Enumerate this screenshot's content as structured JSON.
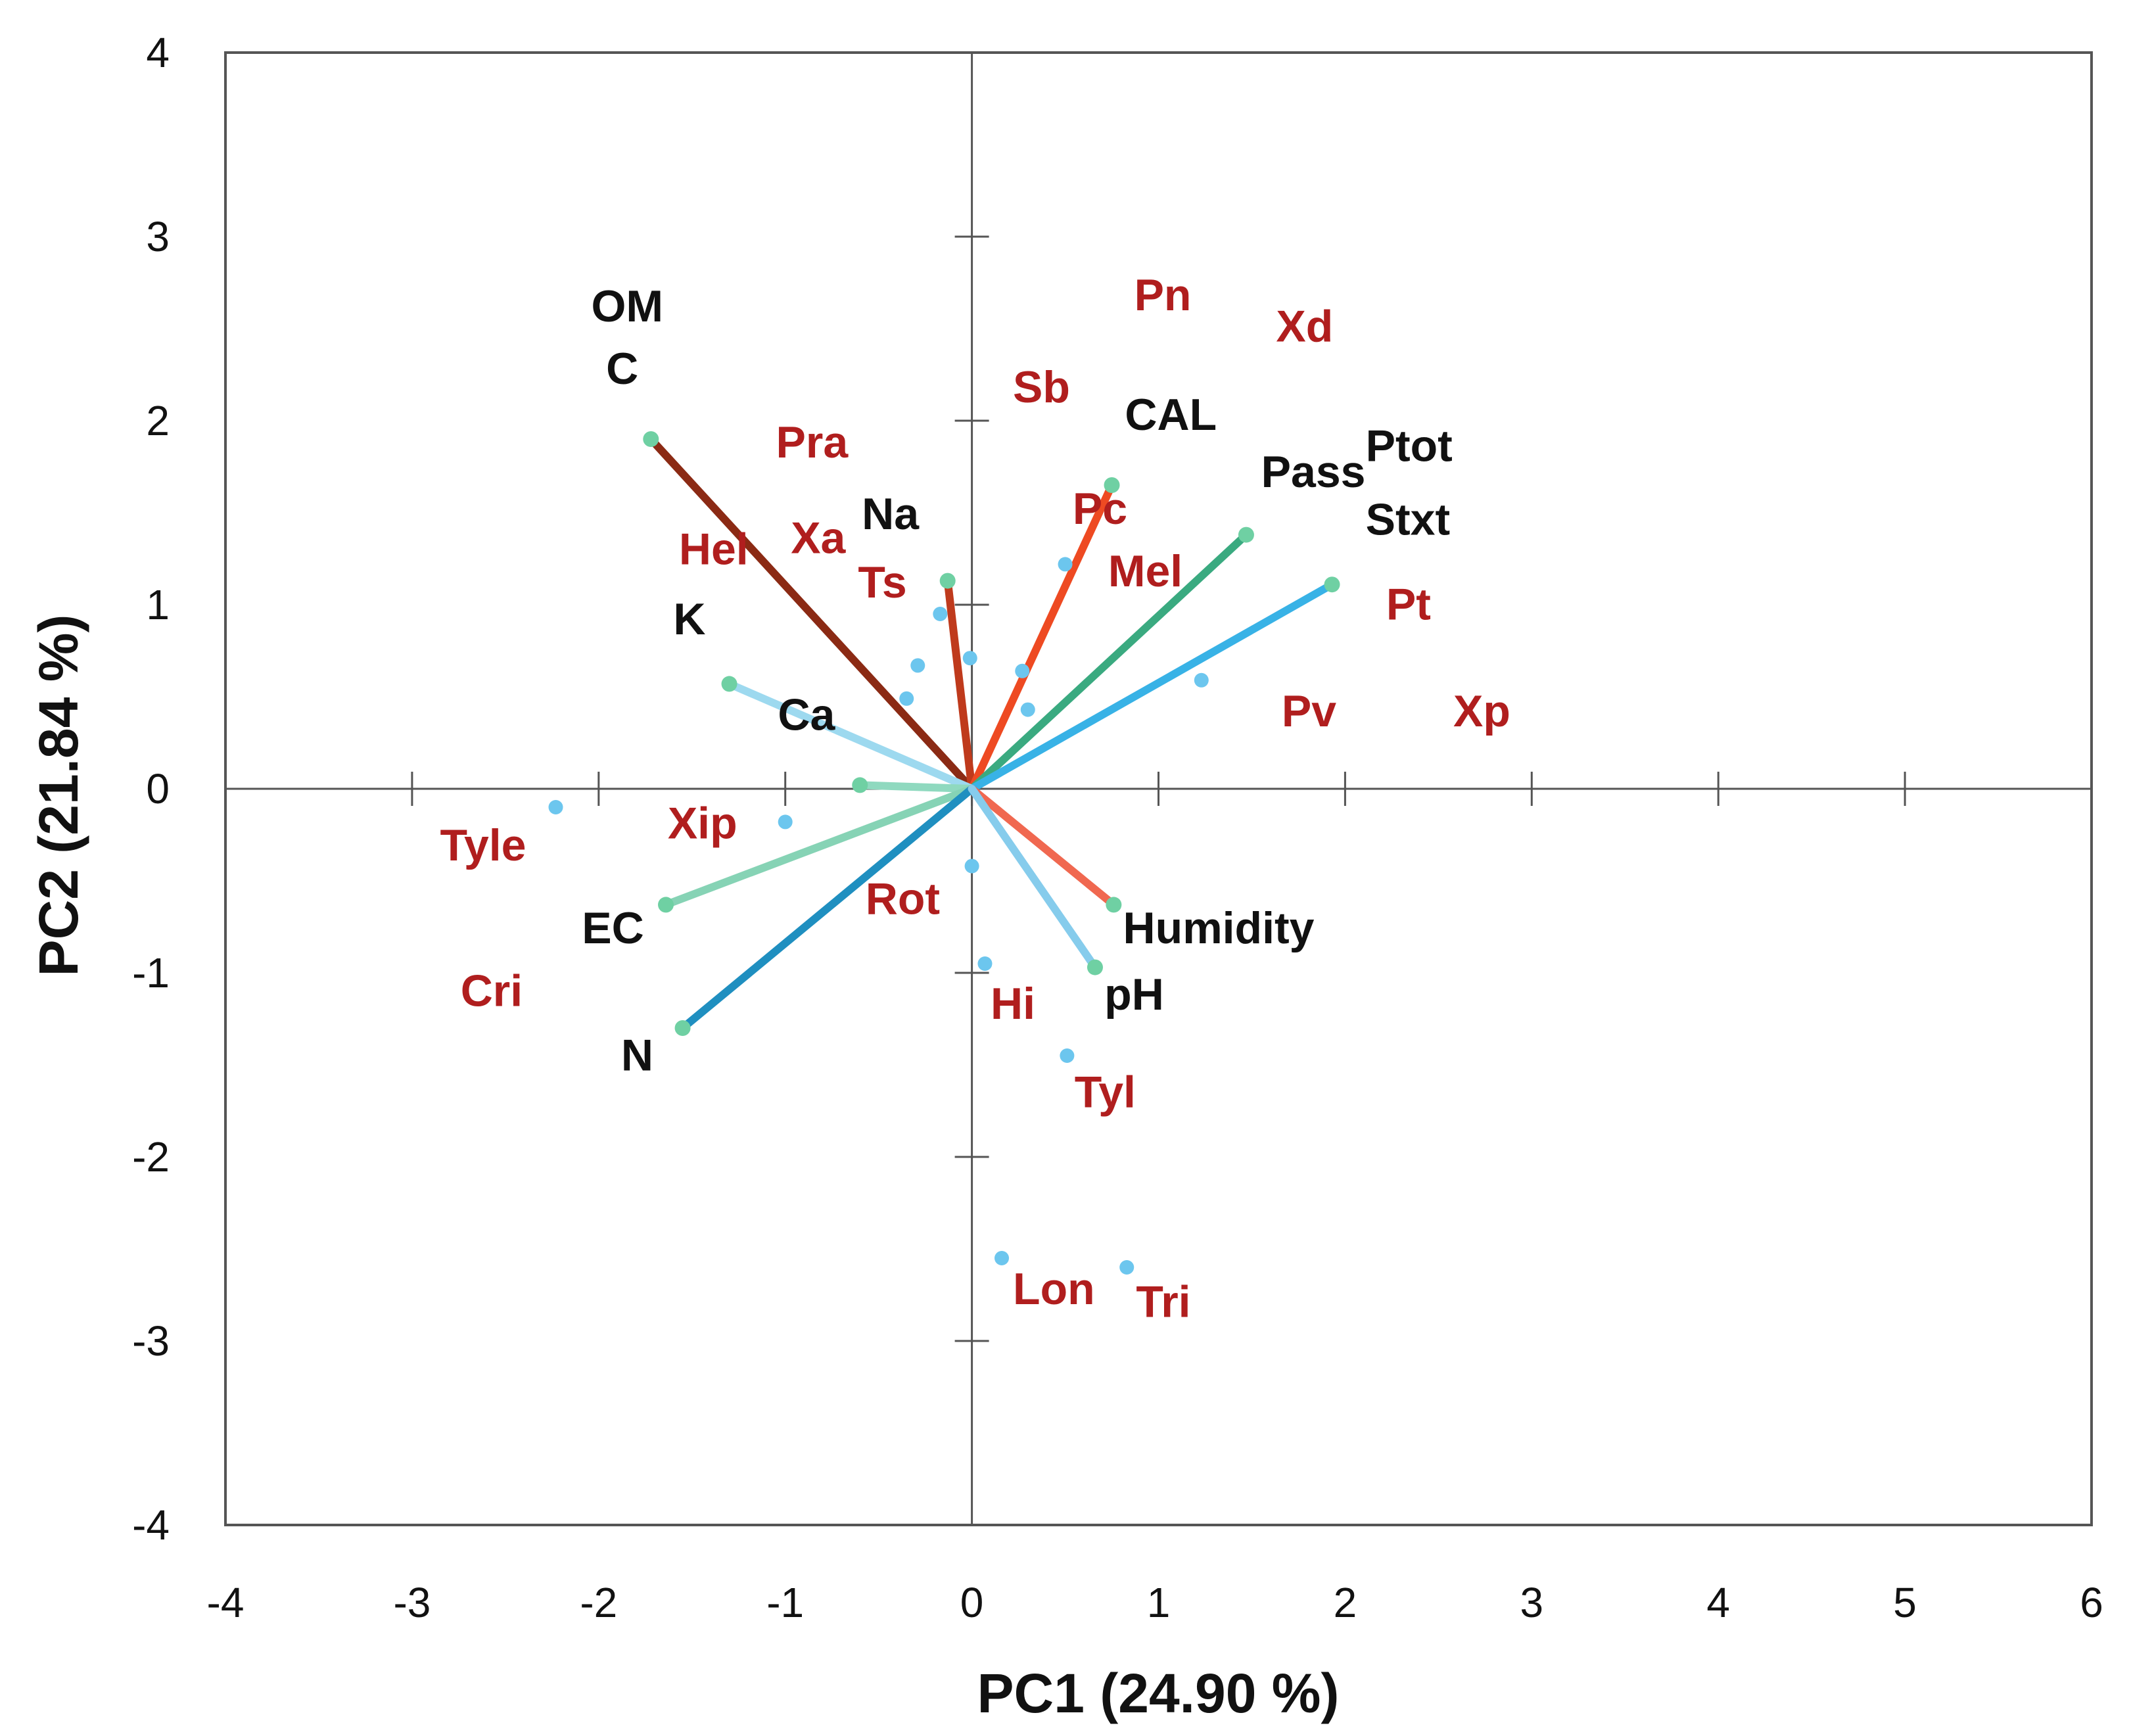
{
  "chart_data": {
    "type": "scatter",
    "subtype": "pca-biplot",
    "title": "",
    "xlabel": "PC1 (24.90 %)",
    "ylabel": "PC2 (21.84 %)",
    "xlim": [
      -4,
      6
    ],
    "ylim": [
      -4,
      4
    ],
    "xticks": [
      -4,
      -3,
      -2,
      -1,
      0,
      1,
      2,
      3,
      4,
      5,
      6
    ],
    "yticks": [
      -4,
      -3,
      -2,
      -1,
      0,
      1,
      2,
      3,
      4
    ],
    "grid": false,
    "colors": {
      "variable_label": "#111111",
      "species_label": "#b01e1e",
      "species_point": "#6cc6ee",
      "vector_tip": "#6fd0a3",
      "axis": "#555555"
    },
    "variables": [
      {
        "name": "OM / C",
        "x": -1.72,
        "y": 1.9,
        "color": "#8b2a14"
      },
      {
        "name": "Na",
        "x": -0.13,
        "y": 1.13,
        "color": "#bf3a1c"
      },
      {
        "name": "CAL",
        "x": 0.75,
        "y": 1.65,
        "color": "#ee4a22"
      },
      {
        "name": "Pass / Ptot / Stxt",
        "x": 1.47,
        "y": 1.38,
        "color": "#3aaa80"
      },
      {
        "name": "Stxt",
        "x": 1.93,
        "y": 1.11,
        "color": "#38b2e6"
      },
      {
        "name": "K",
        "x": -1.3,
        "y": 0.57,
        "color": "#9dd9ef"
      },
      {
        "name": "Ca",
        "x": -0.6,
        "y": 0.02,
        "color": "#8fd9bf"
      },
      {
        "name": "EC",
        "x": -1.64,
        "y": -0.63,
        "color": "#86d3b5"
      },
      {
        "name": "N",
        "x": -1.55,
        "y": -1.3,
        "color": "#1f8fc0"
      },
      {
        "name": "Humidity",
        "x": 0.76,
        "y": -0.63,
        "color": "#f06850"
      },
      {
        "name": "pH",
        "x": 0.66,
        "y": -0.97,
        "color": "#86ccec"
      }
    ],
    "species_points": [
      {
        "x": -2.23,
        "y": -0.1
      },
      {
        "x": -1.0,
        "y": -0.18
      },
      {
        "x": -0.35,
        "y": 0.49
      },
      {
        "x": -0.29,
        "y": 0.67
      },
      {
        "x": -0.17,
        "y": 0.95
      },
      {
        "x": -0.01,
        "y": 0.71
      },
      {
        "x": 0.27,
        "y": 0.64
      },
      {
        "x": 0.3,
        "y": 0.43
      },
      {
        "x": 0.5,
        "y": 1.22
      },
      {
        "x": 1.23,
        "y": 0.59
      },
      {
        "x": 0.0,
        "y": -0.42
      },
      {
        "x": 0.07,
        "y": -0.95
      },
      {
        "x": 0.51,
        "y": -1.45
      },
      {
        "x": 0.16,
        "y": -2.55
      },
      {
        "x": 0.83,
        "y": -2.6
      }
    ],
    "variable_labels": [
      {
        "text": "OM",
        "x": -2.04,
        "y": 2.54
      },
      {
        "text": "C",
        "x": -1.96,
        "y": 2.2
      },
      {
        "text": "CAL",
        "x": 0.82,
        "y": 1.95
      },
      {
        "text": "Ptot",
        "x": 2.11,
        "y": 1.78
      },
      {
        "text": "Pass",
        "x": 1.55,
        "y": 1.64
      },
      {
        "text": "Stxt",
        "x": 2.11,
        "y": 1.38
      },
      {
        "text": "Na",
        "x": -0.59,
        "y": 1.41
      },
      {
        "text": "K",
        "x": -1.6,
        "y": 0.84
      },
      {
        "text": "Ca",
        "x": -1.04,
        "y": 0.32
      },
      {
        "text": "EC",
        "x": -2.09,
        "y": -0.84
      },
      {
        "text": "N",
        "x": -1.88,
        "y": -1.53
      },
      {
        "text": "Humidity",
        "x": 0.81,
        "y": -0.84
      },
      {
        "text": "pH",
        "x": 0.71,
        "y": -1.2
      }
    ],
    "species_labels": [
      {
        "text": "Pn",
        "x": 0.87,
        "y": 2.6
      },
      {
        "text": "Xd",
        "x": 1.63,
        "y": 2.43
      },
      {
        "text": "Sb",
        "x": 0.22,
        "y": 2.1
      },
      {
        "text": "Pra",
        "x": -1.05,
        "y": 1.8
      },
      {
        "text": "Pc",
        "x": 0.54,
        "y": 1.44
      },
      {
        "text": "Xa",
        "x": -0.97,
        "y": 1.28
      },
      {
        "text": "Hel",
        "x": -1.57,
        "y": 1.22
      },
      {
        "text": "Mel",
        "x": 0.73,
        "y": 1.1
      },
      {
        "text": "Ts",
        "x": -0.61,
        "y": 1.04
      },
      {
        "text": "Pt",
        "x": 2.22,
        "y": 0.92
      },
      {
        "text": "Pv",
        "x": 1.66,
        "y": 0.34
      },
      {
        "text": "Xp",
        "x": 2.58,
        "y": 0.34
      },
      {
        "text": "Tyle",
        "x": -2.85,
        "y": -0.39
      },
      {
        "text": "Xip",
        "x": -1.63,
        "y": -0.27
      },
      {
        "text": "Rot",
        "x": -0.57,
        "y": -0.68
      },
      {
        "text": "Cri",
        "x": -2.74,
        "y": -1.18
      },
      {
        "text": "Hi",
        "x": 0.1,
        "y": -1.25
      },
      {
        "text": "Tyl",
        "x": 0.55,
        "y": -1.73
      },
      {
        "text": "Lon",
        "x": 0.22,
        "y": -2.8
      },
      {
        "text": "Tri",
        "x": 0.88,
        "y": -2.87
      }
    ]
  }
}
